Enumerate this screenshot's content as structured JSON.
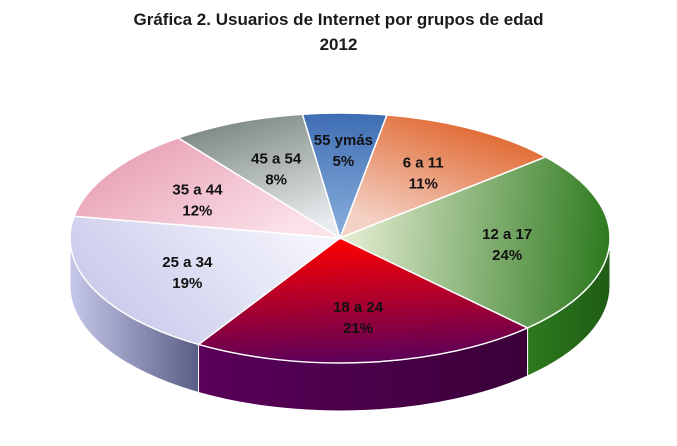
{
  "chart_data": {
    "type": "pie",
    "title": "Gráfica 2. Usuarios de Internet por grupos de edad",
    "subtitle": "2012",
    "slices": [
      {
        "category": "6 a 11",
        "value": 11,
        "value_label": "11%",
        "colors": [
          "#f4d2c6",
          "#e0642a"
        ],
        "side": "#a4441a"
      },
      {
        "category": "12 a 17",
        "value": 24,
        "value_label": "24%",
        "colors": [
          "#e8efd6",
          "#2d7a1e"
        ],
        "side": "#1f5c14"
      },
      {
        "category": "18 a 24",
        "value": 21,
        "value_label": "21%",
        "colors": [
          "#ff0000",
          "#5a005a"
        ],
        "side": "#3a0038"
      },
      {
        "category": "25 a 34",
        "value": 19,
        "value_label": "19%",
        "colors": [
          "#f4f4fc",
          "#c6c8ea"
        ],
        "side": "#5a5e86"
      },
      {
        "category": "35 a 44",
        "value": 12,
        "value_label": "12%",
        "colors": [
          "#fbe2e9",
          "#e8a0b4"
        ],
        "side": "#b8707e"
      },
      {
        "category": "45 a 54",
        "value": 8,
        "value_label": "8%",
        "colors": [
          "#e9ecef",
          "#7d8a82"
        ],
        "side": "#5d6a62"
      },
      {
        "category": "55 ymás",
        "value": 5,
        "value_label": "5%",
        "colors": [
          "#8ab0dd",
          "#3e6db3"
        ],
        "side": "#2c4f86"
      }
    ]
  }
}
